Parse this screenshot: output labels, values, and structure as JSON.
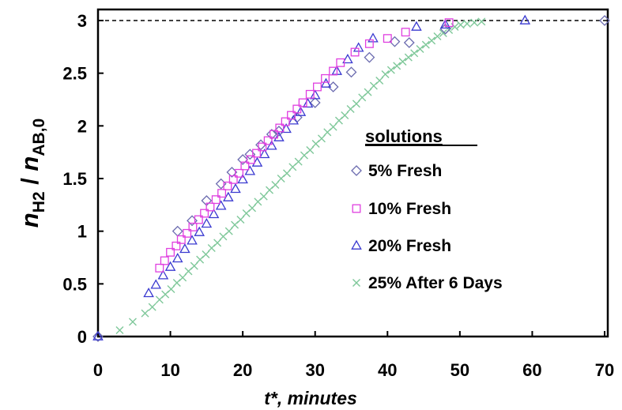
{
  "chart_data": {
    "type": "scatter",
    "xlim": [
      0,
      70
    ],
    "ylim": [
      0,
      3
    ],
    "x_ticks": [
      "0",
      "10",
      "20",
      "30",
      "40",
      "50",
      "60",
      "70"
    ],
    "y_ticks": [
      "0",
      "0.5",
      "1",
      "1.5",
      "2",
      "2.5",
      "3"
    ],
    "xlabel": "t*, minutes",
    "ylabel": {
      "n1": "n",
      "sub1": "H2",
      "sep": " / ",
      "n2": "n",
      "sub2": "AB,0"
    },
    "reference_line": {
      "y": 3,
      "style": "dashed"
    },
    "grid": false,
    "legend": {
      "title": "solutions",
      "placement": "right-center"
    },
    "series": [
      {
        "name": "5% Fresh",
        "marker": "diamond",
        "color": "#6b6baf",
        "points": [
          [
            0,
            0
          ],
          [
            11,
            1.0
          ],
          [
            13,
            1.1
          ],
          [
            15,
            1.29
          ],
          [
            17,
            1.45
          ],
          [
            18.5,
            1.56
          ],
          [
            20,
            1.68
          ],
          [
            21,
            1.73
          ],
          [
            22.5,
            1.82
          ],
          [
            24,
            1.92
          ],
          [
            25,
            1.95
          ],
          [
            27.5,
            2.08
          ],
          [
            30,
            2.22
          ],
          [
            32.5,
            2.37
          ],
          [
            35,
            2.51
          ],
          [
            37.5,
            2.65
          ],
          [
            41,
            2.8
          ],
          [
            43,
            2.79
          ],
          [
            48,
            2.92
          ],
          [
            70,
            3.0
          ]
        ]
      },
      {
        "name": "10% Fresh",
        "marker": "square",
        "color": "#e040e0",
        "points": [
          [
            8.5,
            0.65
          ],
          [
            9.2,
            0.72
          ],
          [
            10,
            0.8
          ],
          [
            10.8,
            0.86
          ],
          [
            11.5,
            0.92
          ],
          [
            12.3,
            0.98
          ],
          [
            13.1,
            1.04
          ],
          [
            13.9,
            1.11
          ],
          [
            14.7,
            1.17
          ],
          [
            15.5,
            1.23
          ],
          [
            16.3,
            1.3
          ],
          [
            17.1,
            1.36
          ],
          [
            17.9,
            1.43
          ],
          [
            18.7,
            1.49
          ],
          [
            19.5,
            1.55
          ],
          [
            20.3,
            1.62
          ],
          [
            21.1,
            1.68
          ],
          [
            21.9,
            1.74
          ],
          [
            22.7,
            1.8
          ],
          [
            23.5,
            1.86
          ],
          [
            24.3,
            1.92
          ],
          [
            25.1,
            1.98
          ],
          [
            25.9,
            2.04
          ],
          [
            26.7,
            2.1
          ],
          [
            27.5,
            2.16
          ],
          [
            28.3,
            2.22
          ],
          [
            29.3,
            2.3
          ],
          [
            30.3,
            2.37
          ],
          [
            31.4,
            2.45
          ],
          [
            32.5,
            2.52
          ],
          [
            33.5,
            2.6
          ],
          [
            35.5,
            2.7
          ],
          [
            37.5,
            2.78
          ],
          [
            40,
            2.83
          ],
          [
            42.5,
            2.89
          ],
          [
            48.5,
            2.98
          ]
        ]
      },
      {
        "name": "20% Fresh",
        "marker": "triangle",
        "color": "#3a3ad0",
        "points": [
          [
            0,
            0
          ],
          [
            7,
            0.41
          ],
          [
            8,
            0.49
          ],
          [
            9,
            0.58
          ],
          [
            10,
            0.66
          ],
          [
            11,
            0.74
          ],
          [
            12,
            0.83
          ],
          [
            13,
            0.91
          ],
          [
            14,
            0.99
          ],
          [
            15,
            1.07
          ],
          [
            16,
            1.16
          ],
          [
            17,
            1.24
          ],
          [
            18,
            1.32
          ],
          [
            19,
            1.4
          ],
          [
            20,
            1.49
          ],
          [
            21,
            1.57
          ],
          [
            22,
            1.65
          ],
          [
            23,
            1.73
          ],
          [
            24,
            1.81
          ],
          [
            25,
            1.89
          ],
          [
            26,
            1.97
          ],
          [
            27,
            2.05
          ],
          [
            28,
            2.13
          ],
          [
            29,
            2.21
          ],
          [
            30,
            2.29
          ],
          [
            31.5,
            2.4
          ],
          [
            33,
            2.52
          ],
          [
            34.5,
            2.63
          ],
          [
            36,
            2.74
          ],
          [
            38,
            2.83
          ],
          [
            44,
            2.94
          ],
          [
            48,
            2.96
          ],
          [
            59,
            3.0
          ]
        ]
      },
      {
        "name": "25% After 6 Days",
        "marker": "x",
        "color": "#7fc89a",
        "points": [
          [
            3,
            0.06
          ],
          [
            4.8,
            0.14
          ],
          [
            6.5,
            0.22
          ],
          [
            7.5,
            0.28
          ],
          [
            8.5,
            0.35
          ],
          [
            9.3,
            0.4
          ],
          [
            10.1,
            0.45
          ],
          [
            10.9,
            0.51
          ],
          [
            11.7,
            0.56
          ],
          [
            12.5,
            0.62
          ],
          [
            13.3,
            0.67
          ],
          [
            14.1,
            0.73
          ],
          [
            14.9,
            0.78
          ],
          [
            15.7,
            0.84
          ],
          [
            16.5,
            0.89
          ],
          [
            17.3,
            0.95
          ],
          [
            18.1,
            1.0
          ],
          [
            18.9,
            1.06
          ],
          [
            19.7,
            1.11
          ],
          [
            20.5,
            1.17
          ],
          [
            21.3,
            1.22
          ],
          [
            22.1,
            1.28
          ],
          [
            22.9,
            1.33
          ],
          [
            23.7,
            1.39
          ],
          [
            24.5,
            1.44
          ],
          [
            25.3,
            1.5
          ],
          [
            26.1,
            1.55
          ],
          [
            26.9,
            1.61
          ],
          [
            27.7,
            1.66
          ],
          [
            28.5,
            1.72
          ],
          [
            29.3,
            1.77
          ],
          [
            30.1,
            1.83
          ],
          [
            30.9,
            1.88
          ],
          [
            31.7,
            1.94
          ],
          [
            32.5,
            1.99
          ],
          [
            33.3,
            2.05
          ],
          [
            34.1,
            2.1
          ],
          [
            34.9,
            2.16
          ],
          [
            35.7,
            2.21
          ],
          [
            36.5,
            2.27
          ],
          [
            37.3,
            2.32
          ],
          [
            38.1,
            2.38
          ],
          [
            38.9,
            2.43
          ],
          [
            39.7,
            2.49
          ],
          [
            40.5,
            2.53
          ],
          [
            41.3,
            2.57
          ],
          [
            42.1,
            2.61
          ],
          [
            42.9,
            2.65
          ],
          [
            43.7,
            2.69
          ],
          [
            44.5,
            2.73
          ],
          [
            45.3,
            2.77
          ],
          [
            46.1,
            2.81
          ],
          [
            46.9,
            2.85
          ],
          [
            47.7,
            2.88
          ],
          [
            48.5,
            2.91
          ],
          [
            49.3,
            2.94
          ],
          [
            50.1,
            2.96
          ],
          [
            51,
            2.97
          ],
          [
            52,
            2.98
          ],
          [
            53,
            2.99
          ]
        ]
      }
    ]
  }
}
